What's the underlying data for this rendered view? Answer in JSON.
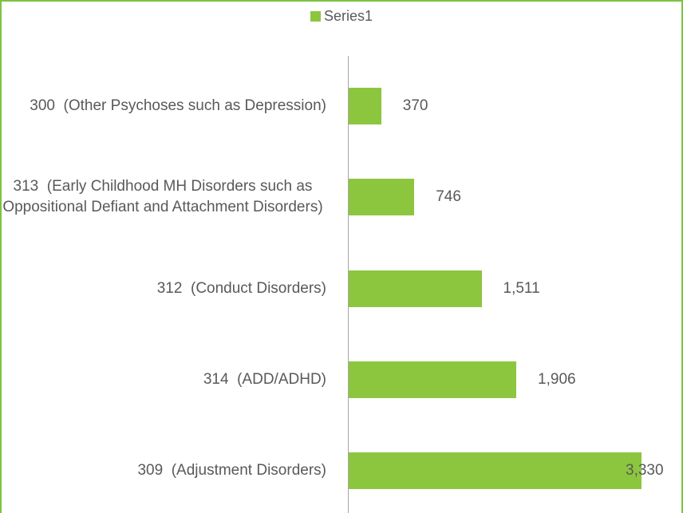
{
  "chart_data": {
    "type": "bar",
    "orientation": "horizontal",
    "categories": [
      "300  (Other Psychoses such as Depression)",
      "313  (Early Childhood MH Disorders such as Oppositional Defiant and Attachment Disorders)",
      "312  (Conduct Disorders)",
      "314  (ADD/ADHD)",
      "309  (Adjustment Disorders)"
    ],
    "series": [
      {
        "name": "Series1",
        "color": "#8cc63f",
        "values": [
          370,
          746,
          1511,
          1906,
          3330
        ],
        "value_labels": [
          "370",
          "746",
          "1,511",
          "1,906",
          "3,330"
        ]
      }
    ],
    "legend": "top"
  }
}
